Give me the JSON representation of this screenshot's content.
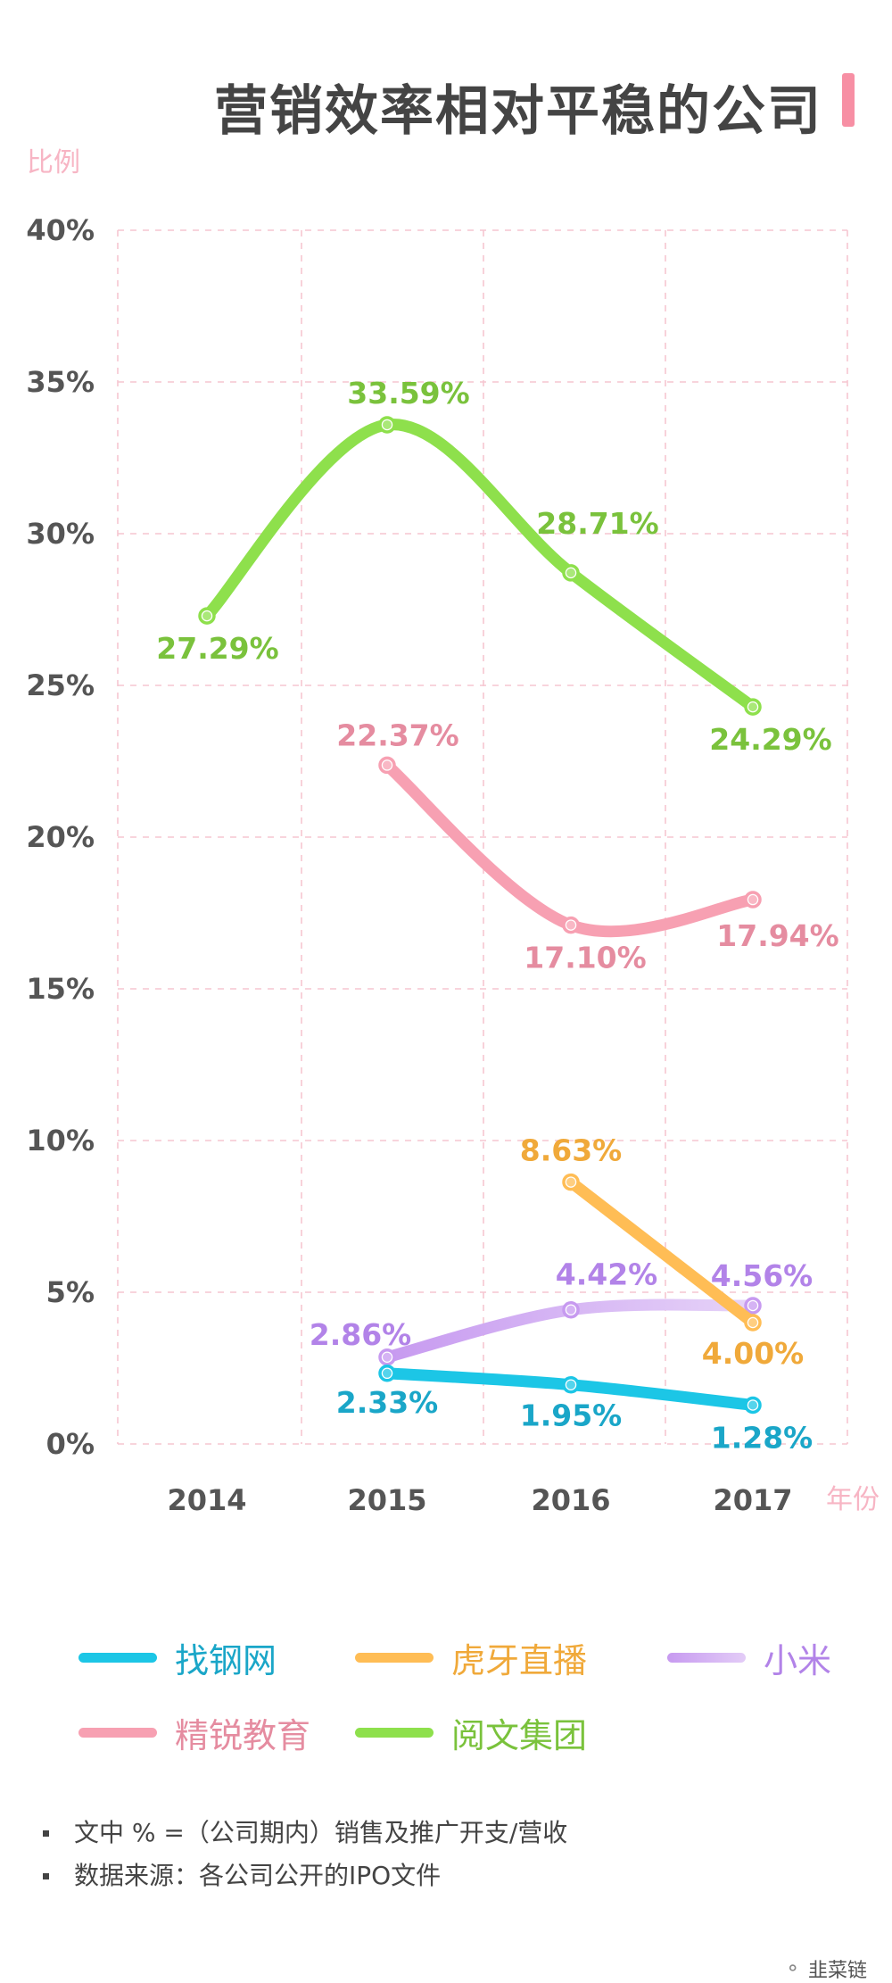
{
  "title": "营销效率相对平稳的公司",
  "chart_data": {
    "type": "line",
    "ylabel": "比例",
    "xlabel": "年份",
    "x": [
      "2014",
      "2015",
      "2016",
      "2017"
    ],
    "ylim": [
      0,
      40
    ],
    "yticks": [
      "0%",
      "5%",
      "10%",
      "15%",
      "20%",
      "25%",
      "30%",
      "35%",
      "40%"
    ],
    "grid": true,
    "legend_position": "bottom",
    "series": [
      {
        "name": "找钢网",
        "color": "#1cc6e6",
        "values": [
          null,
          2.33,
          1.95,
          1.28
        ],
        "labels": [
          null,
          "2.33%",
          "1.95%",
          "1.28%"
        ]
      },
      {
        "name": "虎牙直播",
        "color": "#ffbd55",
        "values": [
          null,
          null,
          8.63,
          4.0
        ],
        "labels": [
          null,
          null,
          "8.63%",
          "4.00%"
        ]
      },
      {
        "name": "小米",
        "color": "#c79af0",
        "values": [
          null,
          2.86,
          4.42,
          4.56
        ],
        "labels": [
          null,
          "2.86%",
          "4.42%",
          "4.56%"
        ]
      },
      {
        "name": "精锐教育",
        "color": "#f7a0b2",
        "values": [
          null,
          22.37,
          17.1,
          17.94
        ],
        "labels": [
          null,
          "22.37%",
          "17.10%",
          "17.94%"
        ]
      },
      {
        "name": "阅文集团",
        "color": "#8ee04c",
        "values": [
          27.29,
          33.59,
          28.71,
          24.29
        ],
        "labels": [
          "27.29%",
          "33.59%",
          "28.71%",
          "24.29%"
        ]
      }
    ]
  },
  "notes": [
    "文中 % =（公司期内）销售及推广开支/营收",
    "数据来源：各公司公开的IPO文件"
  ],
  "brand": {
    "icon": "wechat-icon",
    "text": "韭菜链"
  }
}
